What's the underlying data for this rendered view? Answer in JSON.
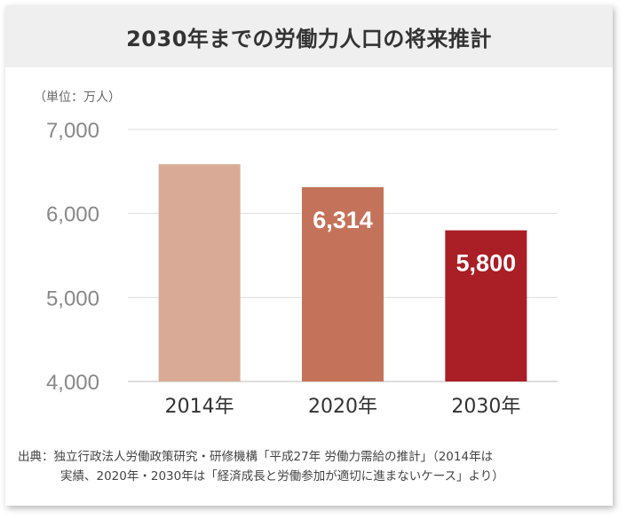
{
  "header": {
    "title": "2030年までの労働力人口の将来推計"
  },
  "chart_data": {
    "type": "bar",
    "title": "2030年までの労働力人口の将来推計",
    "unit_label": "（単位：万人）",
    "categories": [
      "2014年",
      "2020年",
      "2030年"
    ],
    "values": [
      6587,
      6314,
      5800
    ],
    "data_labels": [
      "",
      "6,314",
      "5,800"
    ],
    "ylim": [
      4000,
      7000
    ],
    "yticks": [
      "4,000",
      "5,000",
      "6,000",
      "7,000"
    ],
    "grid": true,
    "colors": [
      "#d9ab96",
      "#c4735a",
      "#aa1e25"
    ]
  },
  "source": {
    "line1": "出典：独立行政法人労働政策研究・研修機構「平成27年 労働力需給の推計」（2014年は",
    "line2": "実績、2020年・2030年は「経済成長と労働参加が適切に進まないケース」より）"
  }
}
